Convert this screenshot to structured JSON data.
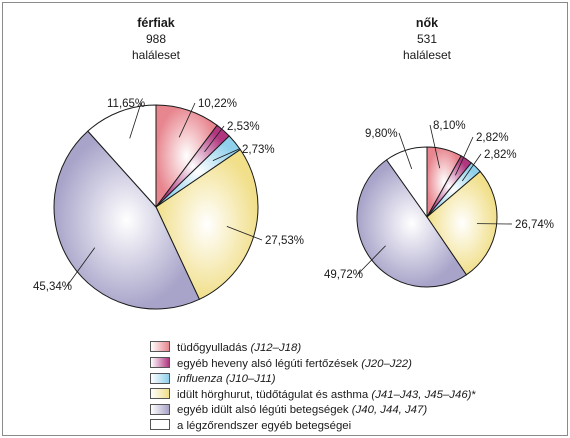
{
  "colors": {
    "tudogyulladas": "#e8868f",
    "egyeb_heveny": "#b0367f",
    "influenza": "#8fd0ec",
    "idult_horghurut": "#f1df8a",
    "egyeb_idult": "#a7a3c9",
    "egyeb": "#ffffff"
  },
  "chart_data": [
    {
      "type": "pie",
      "title": "férfiak",
      "subtitle": [
        "988",
        "haláleset"
      ],
      "categories": [
        "tüdőgyulladás",
        "egyéb heveny alsó légúti fertőzések",
        "influenza",
        "idült hörghurut, tüdőtágulat és asthma",
        "egyéb idült alsó légúti betegségek",
        "a légzőrendszer egyéb betegségei"
      ],
      "values": [
        10.22,
        2.53,
        2.73,
        27.53,
        45.34,
        11.65
      ],
      "labels": [
        "10,22%",
        "2,53%",
        "2,73%",
        "27,53%",
        "45,34%",
        "11,65%"
      ]
    },
    {
      "type": "pie",
      "title": "nők",
      "subtitle": [
        "531",
        "haláleset"
      ],
      "categories": [
        "tüdőgyulladás",
        "egyéb heveny alsó légúti fertőzések",
        "influenza",
        "idült hörghurut, tüdőtágulat és asthma",
        "egyéb idült alsó légúti betegségek",
        "a légzőrendszer egyéb betegségei"
      ],
      "values": [
        8.1,
        2.82,
        2.82,
        26.74,
        49.72,
        9.8
      ],
      "labels": [
        "8,10%",
        "2,82%",
        "2,82%",
        "26,74%",
        "49,72%",
        "9,80%"
      ]
    }
  ],
  "legend": [
    {
      "text": "tüdőgyulladás",
      "code": "(J12–J18)",
      "suffix": "",
      "color_key": "tudogyulladas"
    },
    {
      "text": "egyéb heveny alsó légúti fertőzések",
      "code": "(J20–J22)",
      "suffix": "",
      "color_key": "egyeb_heveny"
    },
    {
      "text": "",
      "code": "influenza (J10–J11)",
      "suffix": "",
      "color_key": "influenza"
    },
    {
      "text": "idült hörghurut, tüdőtágulat és asthma",
      "code": "(J41–J43, J45–J46)",
      "suffix": "*",
      "color_key": "idult_horghurut"
    },
    {
      "text": "egyéb idült alsó légúti betegségek",
      "code": "(J40, J44, J47)",
      "suffix": "",
      "color_key": "egyeb_idult"
    },
    {
      "text": "a légzőrendszer egyéb betegségei",
      "code": "",
      "suffix": "",
      "color_key": "egyeb"
    }
  ]
}
